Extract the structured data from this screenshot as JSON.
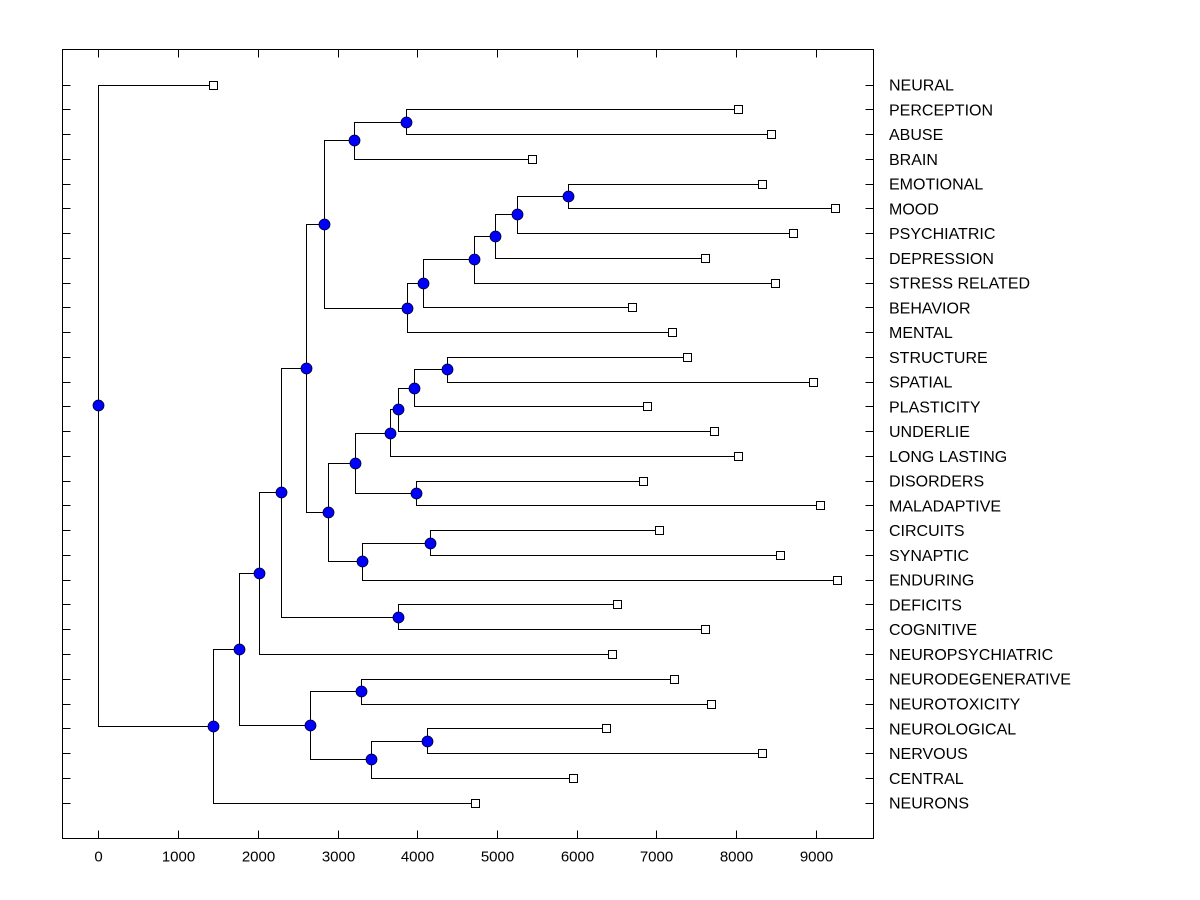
{
  "chart_data": {
    "type": "dendrogram",
    "title": "",
    "xlabel": "",
    "ylabel": "",
    "xlim": [
      -451,
      9724
    ],
    "xticks": [
      0,
      1000,
      2000,
      3000,
      4000,
      5000,
      6000,
      7000,
      8000,
      9000
    ],
    "xtick_labels": [
      "0",
      "1000",
      "2000",
      "3000",
      "4000",
      "5000",
      "6000",
      "7000",
      "8000",
      "9000"
    ],
    "grid": false,
    "node_color": "#0000ff",
    "leaf_marker": "open-square",
    "leaves": [
      {
        "label": "NEURAL",
        "value": 1443
      },
      {
        "label": "PERCEPTION",
        "value": 8030
      },
      {
        "label": "ABUSE",
        "value": 8444
      },
      {
        "label": "BRAIN",
        "value": 5445
      },
      {
        "label": "EMOTIONAL",
        "value": 8331
      },
      {
        "label": "MOOD",
        "value": 9235
      },
      {
        "label": "PSYCHIATRIC",
        "value": 8720
      },
      {
        "label": "DEPRESSION",
        "value": 7604
      },
      {
        "label": "STRESS RELATED",
        "value": 8494
      },
      {
        "label": "BEHAVIOR",
        "value": 6700
      },
      {
        "label": "MENTAL",
        "value": 7202
      },
      {
        "label": "STRUCTURE",
        "value": 7390
      },
      {
        "label": "SPATIAL",
        "value": 8971
      },
      {
        "label": "PLASTICITY",
        "value": 6888
      },
      {
        "label": "UNDERLIE",
        "value": 7729
      },
      {
        "label": "LONG LASTING",
        "value": 8030
      },
      {
        "label": "DISORDERS",
        "value": 6826
      },
      {
        "label": "MALADAPTIVE",
        "value": 9059
      },
      {
        "label": "CIRCUITS",
        "value": 7039
      },
      {
        "label": "SYNAPTIC",
        "value": 8557
      },
      {
        "label": "ENDURING",
        "value": 9260
      },
      {
        "label": "DEFICITS",
        "value": 6512
      },
      {
        "label": "COGNITIVE",
        "value": 7616
      },
      {
        "label": "NEUROPSYCHIATRIC",
        "value": 6437
      },
      {
        "label": "NEURODEGENERATIVE",
        "value": 7215
      },
      {
        "label": "NEUROTOXICITY",
        "value": 7679
      },
      {
        "label": "NEUROLOGICAL",
        "value": 6374
      },
      {
        "label": "NERVOUS",
        "value": 8319
      },
      {
        "label": "CENTRAL",
        "value": 5960
      },
      {
        "label": "NEURONS",
        "value": 4730
      }
    ],
    "tree": {
      "value": 0,
      "children": [
        {
          "leaf": 0
        },
        {
          "value": 1443,
          "children": [
            {
              "value": 1769,
              "children": [
                {
                  "value": 2020,
                  "children": [
                    {
                      "value": 2296,
                      "children": [
                        {
                          "value": 2610,
                          "children": [
                            {
                              "value": 2836,
                              "children": [
                                {
                                  "value": 3212,
                                  "children": [
                                    {
                                      "value": 3864,
                                      "children": [
                                        {
                                          "leaf": 1
                                        },
                                        {
                                          "leaf": 2
                                        }
                                      ]
                                    },
                                    {
                                      "leaf": 3
                                    }
                                  ]
                                },
                                {
                                  "value": 3877,
                                  "children": [
                                    {
                                      "value": 4078,
                                      "children": [
                                        {
                                          "value": 4718,
                                          "children": [
                                            {
                                              "value": 4981,
                                              "children": [
                                                {
                                                  "value": 5245,
                                                  "children": [
                                                    {
                                                      "value": 5885,
                                                      "children": [
                                                        {
                                                          "leaf": 4
                                                        },
                                                        {
                                                          "leaf": 5
                                                        }
                                                      ]
                                                    },
                                                    {
                                                      "leaf": 6
                                                    }
                                                  ]
                                                },
                                                {
                                                  "leaf": 7
                                                }
                                              ]
                                            },
                                            {
                                              "leaf": 8
                                            }
                                          ]
                                        },
                                        {
                                          "leaf": 9
                                        }
                                      ]
                                    },
                                    {
                                      "leaf": 10
                                    }
                                  ]
                                }
                              ]
                            },
                            {
                              "value": 2886,
                              "children": [
                                {
                                  "value": 3225,
                                  "children": [
                                    {
                                      "value": 3664,
                                      "children": [
                                        {
                                          "value": 3752,
                                          "children": [
                                            {
                                              "value": 3965,
                                              "children": [
                                                {
                                                  "value": 4379,
                                                  "children": [
                                                    {
                                                      "leaf": 11
                                                    },
                                                    {
                                                      "leaf": 12
                                                    }
                                                  ]
                                                },
                                                {
                                                  "leaf": 13
                                                }
                                              ]
                                            },
                                            {
                                              "leaf": 14
                                            }
                                          ]
                                        },
                                        {
                                          "leaf": 15
                                        }
                                      ]
                                    },
                                    {
                                      "value": 3990,
                                      "children": [
                                        {
                                          "leaf": 16
                                        },
                                        {
                                          "leaf": 17
                                        }
                                      ]
                                    }
                                  ]
                                },
                                {
                                  "value": 3312,
                                  "children": [
                                    {
                                      "value": 4166,
                                      "children": [
                                        {
                                          "leaf": 18
                                        },
                                        {
                                          "leaf": 19
                                        }
                                      ]
                                    },
                                    {
                                      "leaf": 20
                                    }
                                  ]
                                }
                              ]
                            }
                          ]
                        },
                        {
                          "value": 3752,
                          "children": [
                            {
                              "leaf": 21
                            },
                            {
                              "leaf": 22
                            }
                          ]
                        }
                      ]
                    },
                    {
                      "leaf": 23
                    }
                  ]
                },
                {
                  "value": 2660,
                  "children": [
                    {
                      "value": 3300,
                      "children": [
                        {
                          "leaf": 24
                        },
                        {
                          "leaf": 25
                        }
                      ]
                    },
                    {
                      "value": 3425,
                      "children": [
                        {
                          "value": 4128,
                          "children": [
                            {
                              "leaf": 26
                            },
                            {
                              "leaf": 27
                            }
                          ]
                        },
                        {
                          "leaf": 28
                        }
                      ]
                    }
                  ]
                }
              ]
            },
            {
              "leaf": 29
            }
          ]
        }
      ]
    }
  }
}
